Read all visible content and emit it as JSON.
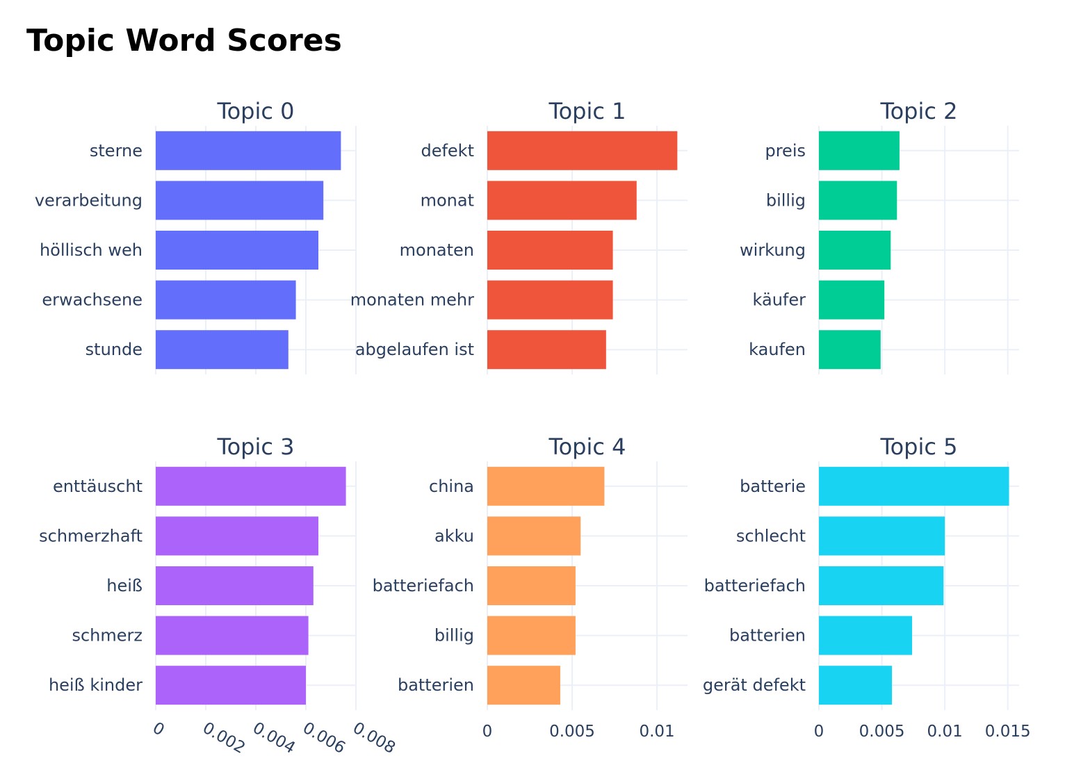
{
  "title": "Topic Word Scores",
  "chart_data": [
    {
      "type": "bar",
      "orientation": "horizontal",
      "title": "Topic 0",
      "color": "#636efa",
      "categories": [
        "sterne",
        "verarbeitung",
        "höllisch weh",
        "erwachsene",
        "stunde"
      ],
      "values": [
        0.0074,
        0.0067,
        0.0065,
        0.0056,
        0.0053
      ],
      "xlim": [
        0,
        0.008
      ],
      "xticks": [
        0,
        0.002,
        0.004,
        0.006,
        0.008
      ],
      "xtick_labels": [
        "0",
        "0.002",
        "0.004",
        "0.006",
        "0.008"
      ],
      "grid": true
    },
    {
      "type": "bar",
      "orientation": "horizontal",
      "title": "Topic 1",
      "color": "#ef553b",
      "categories": [
        "defekt",
        "monat",
        "monaten",
        "monaten mehr",
        "abgelaufen ist"
      ],
      "values": [
        0.0112,
        0.0088,
        0.0074,
        0.0074,
        0.007
      ],
      "xlim": [
        0,
        0.0118
      ],
      "xticks": [
        0,
        0.005,
        0.01
      ],
      "xtick_labels": [
        "0",
        "0.005",
        "0.01"
      ],
      "grid": true
    },
    {
      "type": "bar",
      "orientation": "horizontal",
      "title": "Topic 2",
      "color": "#00cc96",
      "categories": [
        "preis",
        "billig",
        "wirkung",
        "käufer",
        "kaufen"
      ],
      "values": [
        0.0064,
        0.0062,
        0.0057,
        0.0052,
        0.0049
      ],
      "xlim": [
        0,
        0.0159
      ],
      "xticks": [
        0,
        0.005,
        0.01,
        0.015
      ],
      "xtick_labels": [
        "0",
        "0.005",
        "0.01",
        "0.015"
      ],
      "grid": true
    },
    {
      "type": "bar",
      "orientation": "horizontal",
      "title": "Topic 3",
      "color": "#ab63fa",
      "categories": [
        "enttäuscht",
        "schmerzhaft",
        "heiß",
        "schmerz",
        "heiß kinder"
      ],
      "values": [
        0.0076,
        0.0065,
        0.0063,
        0.0061,
        0.006
      ],
      "xlim": [
        0,
        0.008
      ],
      "xticks": [
        0,
        0.002,
        0.004,
        0.006,
        0.008
      ],
      "xtick_labels": [
        "0",
        "0.002",
        "0.004",
        "0.006",
        "0.008"
      ],
      "grid": true
    },
    {
      "type": "bar",
      "orientation": "horizontal",
      "title": "Topic 4",
      "color": "#ffa15a",
      "categories": [
        "china",
        "akku",
        "batteriefach",
        "billig",
        "batterien"
      ],
      "values": [
        0.0069,
        0.0055,
        0.0052,
        0.0052,
        0.0043
      ],
      "xlim": [
        0,
        0.0118
      ],
      "xticks": [
        0,
        0.005,
        0.01
      ],
      "xtick_labels": [
        "0",
        "0.005",
        "0.01"
      ],
      "grid": true
    },
    {
      "type": "bar",
      "orientation": "horizontal",
      "title": "Topic 5",
      "color": "#19d3f3",
      "categories": [
        "batterie",
        "schlecht",
        "batteriefach",
        "batterien",
        "gerät defekt"
      ],
      "values": [
        0.0151,
        0.01,
        0.0099,
        0.0074,
        0.0058
      ],
      "xlim": [
        0,
        0.0159
      ],
      "xticks": [
        0,
        0.005,
        0.01,
        0.015
      ],
      "xtick_labels": [
        "0",
        "0.005",
        "0.01",
        "0.015"
      ],
      "grid": true
    }
  ]
}
